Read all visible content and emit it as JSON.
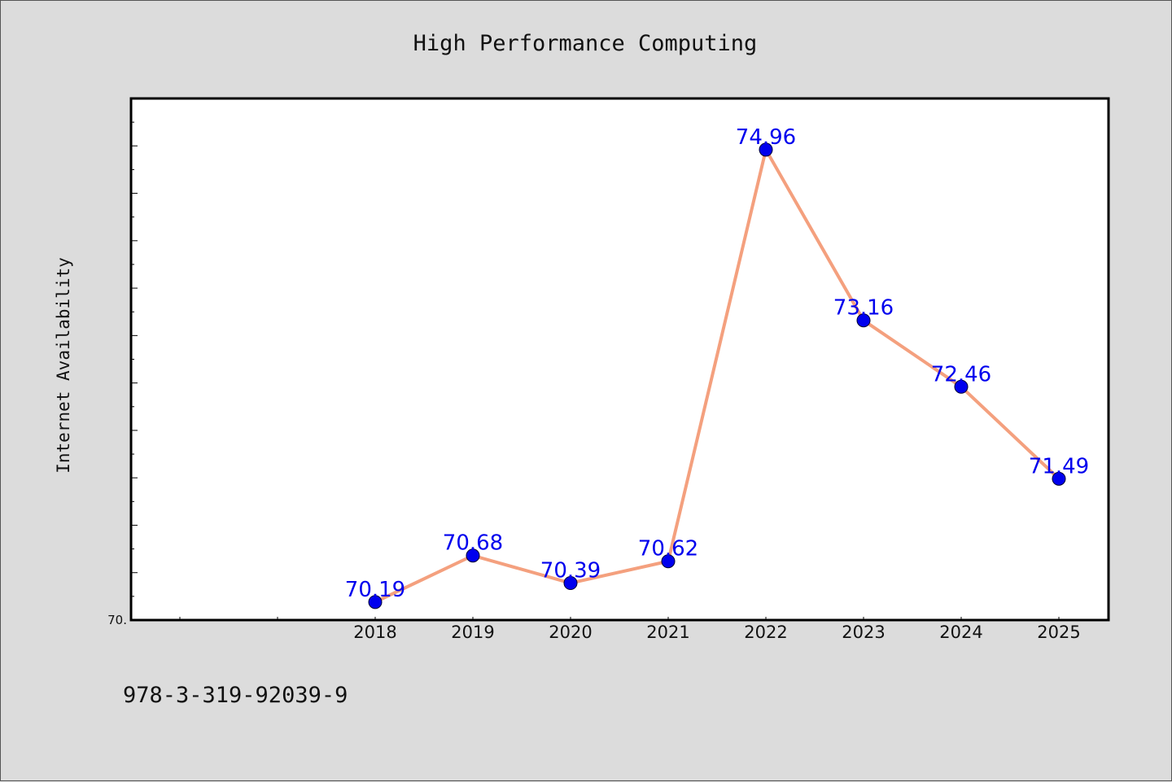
{
  "chart_data": {
    "type": "line",
    "title": "High Performance Computing",
    "xlabel": "",
    "ylabel": "Internet Availability",
    "categories": [
      "2018",
      "2019",
      "2020",
      "2021",
      "2022",
      "2023",
      "2024",
      "2025"
    ],
    "series": [
      {
        "values": [
          70.19,
          70.68,
          70.39,
          70.62,
          74.96,
          73.16,
          72.46,
          71.49
        ],
        "data_labels": [
          "70.19",
          "70.68",
          "70.39",
          "70.62",
          "74.96",
          "73.16",
          "72.46",
          "71.49"
        ],
        "line_color": "#f4a07e",
        "marker_color": "#0000ee",
        "label_color": "#0000ee"
      }
    ],
    "ylim": [
      70.0,
      75.5
    ],
    "y_tick_labels": [
      "70."
    ],
    "grid": false,
    "legend": "none"
  },
  "footer": {
    "isbn": "978-3-319-92039-9"
  },
  "colors": {
    "background": "#dcdcdc",
    "plot_background": "#ffffff",
    "axis": "#000000"
  }
}
